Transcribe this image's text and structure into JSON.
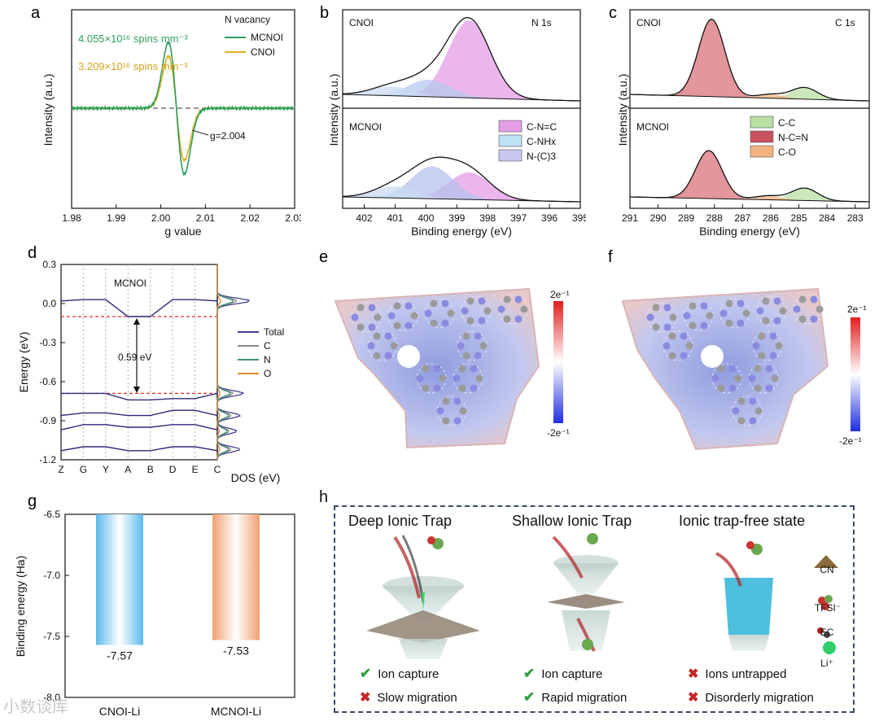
{
  "panels": {
    "a": {
      "label": "a",
      "legend_title": "N vacancy",
      "annotations": [
        {
          "text": "4.055×10¹⁶ spins mm⁻³",
          "color": "#2e9e5e"
        },
        {
          "text": "3.209×10¹⁶ spins mm⁻³",
          "color": "#d6a21a"
        },
        {
          "text": "g=2.004",
          "color": "#222222"
        }
      ]
    },
    "b": {
      "label": "b",
      "sample_top": "CNOI",
      "sample_bottom": "MCNOI",
      "core": "N 1s",
      "legend": [
        "C-N=C",
        "C-NHx",
        "N-(C)3"
      ]
    },
    "c": {
      "label": "c",
      "sample_top": "CNOI",
      "sample_bottom": "MCNOI",
      "core": "C 1s",
      "legend": [
        "C-C",
        "N-C=N",
        "C-O"
      ]
    },
    "d": {
      "label": "d",
      "inner_title": "MCNOI",
      "gap_label": "0.59 eV",
      "dos_xlabel": "DOS (eV)",
      "legend": [
        "Total",
        "C",
        "N",
        "O"
      ]
    },
    "e": {
      "label": "e",
      "cbar_max": "2e⁻¹",
      "cbar_min": "-2e⁻¹"
    },
    "f": {
      "label": "f",
      "cbar_max": "2e⁻¹",
      "cbar_min": "-2e⁻¹"
    },
    "g": {
      "label": "g"
    },
    "h": {
      "label": "h",
      "columns": [
        {
          "title": "Deep Ionic Trap",
          "items": [
            {
              "ok": true,
              "text": "Ion capture"
            },
            {
              "ok": false,
              "text": "Slow migration"
            }
          ]
        },
        {
          "title": "Shallow Ionic Trap",
          "items": [
            {
              "ok": true,
              "text": "Ion capture"
            },
            {
              "ok": true,
              "text": "Rapid migration"
            }
          ]
        },
        {
          "title": "Ionic trap-free state",
          "items": [
            {
              "ok": false,
              "text": "Ions untrapped"
            },
            {
              "ok": false,
              "text": "Disorderly migration"
            }
          ]
        }
      ],
      "side_legend": [
        "CN",
        "TFSI⁻",
        "EC",
        "Li⁺"
      ]
    }
  },
  "watermark": "小数谈库",
  "chart_data": [
    {
      "id": "a",
      "type": "line",
      "title": "",
      "xlabel": "g value",
      "ylabel": "Intensity (a.u.)",
      "xlim": [
        1.98,
        2.03
      ],
      "xticks": [
        "1.98",
        "1.99",
        "2.00",
        "2.01",
        "2.02",
        "2.03"
      ],
      "series": [
        {
          "name": "MCNOI",
          "color": "#2e9e5e",
          "amplitude": 1.0,
          "center": 2.0035
        },
        {
          "name": "CNOI",
          "color": "#e0b020",
          "amplitude": 0.79,
          "center": 2.0035
        }
      ]
    },
    {
      "id": "b",
      "type": "line",
      "xlabel": "Binding energy (eV)",
      "ylabel": "Intensity (a.u.)",
      "xlim": [
        402.7,
        395
      ],
      "xticks": [
        "402",
        "401",
        "400",
        "399",
        "398",
        "397",
        "396",
        "395"
      ],
      "peaks_top": [
        {
          "name": "C-N=C",
          "center": 398.6,
          "height": 1.0,
          "color": "#e39ee6"
        },
        {
          "name": "C-NHx",
          "center": 399.9,
          "height": 0.22,
          "color": "#b6c8ee"
        },
        {
          "name": "N-(C)3",
          "center": 401.1,
          "height": 0.12,
          "color": "#c8dcf2"
        }
      ],
      "peaks_bottom": [
        {
          "name": "C-N=C",
          "center": 398.6,
          "height": 0.35,
          "color": "#e39ee6"
        },
        {
          "name": "C-NHx",
          "center": 399.8,
          "height": 0.42,
          "color": "#b6c2ee"
        },
        {
          "name": "N-(C)3",
          "center": 401.0,
          "height": 0.15,
          "color": "#c8dcf2"
        }
      ]
    },
    {
      "id": "c",
      "type": "line",
      "xlabel": "Binding energy (eV)",
      "ylabel": "Intensity (a.u.)",
      "xlim": [
        291,
        282.5
      ],
      "xticks": [
        "291",
        "290",
        "289",
        "288",
        "287",
        "286",
        "285",
        "284",
        "283"
      ],
      "peaks_top": [
        {
          "name": "N-C=N",
          "center": 288.1,
          "height": 1.0,
          "color": "#d9737a"
        },
        {
          "name": "C-C",
          "center": 284.8,
          "height": 0.15,
          "color": "#b9e0a5"
        },
        {
          "name": "C-O",
          "center": 286.0,
          "height": 0.05,
          "color": "#f1b27f"
        }
      ],
      "peaks_bottom": [
        {
          "name": "N-C=N",
          "center": 288.2,
          "height": 0.62,
          "color": "#d9737a"
        },
        {
          "name": "C-C",
          "center": 284.8,
          "height": 0.16,
          "color": "#b9e0a5"
        },
        {
          "name": "C-O",
          "center": 286.1,
          "height": 0.05,
          "color": "#f1b27f"
        }
      ]
    },
    {
      "id": "d",
      "type": "line",
      "xlabel": "",
      "ylabel": "Energy (eV)",
      "ylim": [
        -1.2,
        0.3
      ],
      "yticks": [
        "0.3",
        "0.0",
        "-0.3",
        "-0.6",
        "-0.9",
        "-1.2"
      ],
      "kpoints": [
        "Z",
        "G",
        "Y",
        "A",
        "B",
        "D",
        "E",
        "C"
      ],
      "bands": [
        [
          0.02,
          0.03,
          0.03,
          -0.1,
          -0.1,
          0.03,
          0.03,
          0.02
        ],
        [
          -0.69,
          -0.69,
          -0.69,
          -0.74,
          -0.74,
          -0.73,
          -0.73,
          -0.69
        ],
        [
          -0.86,
          -0.84,
          -0.84,
          -0.86,
          -0.86,
          -0.82,
          -0.82,
          -0.86
        ],
        [
          -0.97,
          -0.93,
          -0.93,
          -0.95,
          -0.95,
          -0.93,
          -0.93,
          -0.97
        ],
        [
          -1.13,
          -1.1,
          -1.1,
          -1.13,
          -1.13,
          -1.1,
          -1.1,
          -1.13
        ]
      ],
      "dashed_levels": [
        -0.1,
        -0.69
      ],
      "gap_eV": 0.59
    },
    {
      "id": "g",
      "type": "bar",
      "xlabel": "",
      "ylabel": "Binding energy (Ha)",
      "ylim": [
        -6.5,
        -8.0
      ],
      "yticks": [
        "-6.5",
        "-7.0",
        "-7.5",
        "-8.0"
      ],
      "categories": [
        "CNOI-Li",
        "MCNOI-Li"
      ],
      "values": [
        -7.57,
        -7.53
      ],
      "value_labels": [
        "-7.57",
        "-7.53"
      ],
      "colors": [
        "#5bb9ec",
        "#f0a070"
      ]
    }
  ]
}
